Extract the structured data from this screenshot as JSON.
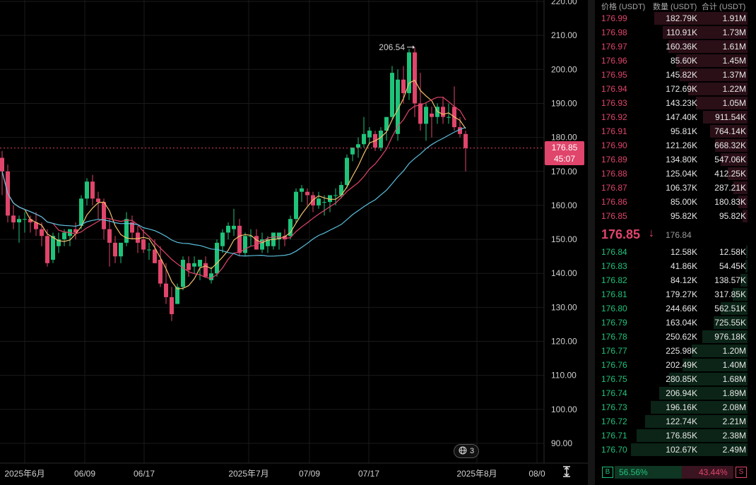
{
  "chart_data": {
    "type": "candlestick",
    "y_axis": {
      "ticks": [
        "220.00",
        "210.00",
        "200.00",
        "190.00",
        "180.00",
        "170.00",
        "160.00",
        "150.00",
        "140.00",
        "130.00",
        "120.00",
        "110.00",
        "100.00",
        "90.00"
      ],
      "range": [
        84,
        222
      ]
    },
    "x_axis": {
      "ticks": [
        "2025年6月",
        "06/09",
        "06/17",
        "2025年7月",
        "07/09",
        "07/17",
        "2025年8月",
        "08/0"
      ]
    },
    "candles": [
      {
        "o": 174,
        "h": 176,
        "l": 163,
        "c": 170
      },
      {
        "o": 170,
        "h": 172,
        "l": 155,
        "c": 157
      },
      {
        "o": 157,
        "h": 160,
        "l": 153,
        "c": 155
      },
      {
        "o": 155,
        "h": 157,
        "l": 149,
        "c": 156
      },
      {
        "o": 156,
        "h": 158,
        "l": 152,
        "c": 156
      },
      {
        "o": 156,
        "h": 157,
        "l": 152,
        "c": 155
      },
      {
        "o": 155,
        "h": 158,
        "l": 151,
        "c": 153
      },
      {
        "o": 153,
        "h": 155,
        "l": 148,
        "c": 151
      },
      {
        "o": 151,
        "h": 153,
        "l": 142,
        "c": 143
      },
      {
        "o": 144,
        "h": 152,
        "l": 143,
        "c": 151
      },
      {
        "o": 148,
        "h": 152,
        "l": 146,
        "c": 150
      },
      {
        "o": 150,
        "h": 153,
        "l": 148,
        "c": 152
      },
      {
        "o": 151,
        "h": 153,
        "l": 148,
        "c": 153
      },
      {
        "o": 153,
        "h": 155,
        "l": 150,
        "c": 152
      },
      {
        "o": 154,
        "h": 163,
        "l": 153,
        "c": 162
      },
      {
        "o": 162,
        "h": 168,
        "l": 160,
        "c": 167
      },
      {
        "o": 167,
        "h": 169,
        "l": 160,
        "c": 162
      },
      {
        "o": 162,
        "h": 164,
        "l": 156,
        "c": 161
      },
      {
        "o": 161,
        "h": 162,
        "l": 150,
        "c": 153
      },
      {
        "o": 153,
        "h": 156,
        "l": 142,
        "c": 149
      },
      {
        "o": 149,
        "h": 151,
        "l": 143,
        "c": 145
      },
      {
        "o": 145,
        "h": 149,
        "l": 143,
        "c": 149
      },
      {
        "o": 149,
        "h": 158,
        "l": 148,
        "c": 156
      },
      {
        "o": 155,
        "h": 157,
        "l": 150,
        "c": 152
      },
      {
        "o": 152,
        "h": 154,
        "l": 146,
        "c": 149
      },
      {
        "o": 150,
        "h": 153,
        "l": 146,
        "c": 147
      },
      {
        "o": 147,
        "h": 149,
        "l": 144,
        "c": 147
      },
      {
        "o": 147,
        "h": 150,
        "l": 143,
        "c": 143
      },
      {
        "o": 144,
        "h": 148,
        "l": 136,
        "c": 137
      },
      {
        "o": 137,
        "h": 143,
        "l": 131,
        "c": 133
      },
      {
        "o": 133,
        "h": 136,
        "l": 126,
        "c": 128
      },
      {
        "o": 131,
        "h": 137,
        "l": 131,
        "c": 136
      },
      {
        "o": 136,
        "h": 145,
        "l": 135,
        "c": 144
      },
      {
        "o": 143,
        "h": 145,
        "l": 139,
        "c": 141
      },
      {
        "o": 142,
        "h": 145,
        "l": 140,
        "c": 143
      },
      {
        "o": 142,
        "h": 144,
        "l": 138,
        "c": 144
      },
      {
        "o": 143,
        "h": 145,
        "l": 139,
        "c": 139
      },
      {
        "o": 138,
        "h": 142,
        "l": 137,
        "c": 140
      },
      {
        "o": 140,
        "h": 150,
        "l": 139,
        "c": 149
      },
      {
        "o": 148,
        "h": 153,
        "l": 146,
        "c": 152
      },
      {
        "o": 152,
        "h": 155,
        "l": 150,
        "c": 154
      },
      {
        "o": 153,
        "h": 159,
        "l": 151,
        "c": 154
      },
      {
        "o": 154,
        "h": 156,
        "l": 145,
        "c": 146
      },
      {
        "o": 146,
        "h": 152,
        "l": 145,
        "c": 151
      },
      {
        "o": 151,
        "h": 153,
        "l": 148,
        "c": 151
      },
      {
        "o": 151,
        "h": 153,
        "l": 147,
        "c": 147
      },
      {
        "o": 147,
        "h": 152,
        "l": 146,
        "c": 150
      },
      {
        "o": 148,
        "h": 151,
        "l": 146,
        "c": 150
      },
      {
        "o": 148,
        "h": 152,
        "l": 147,
        "c": 152
      },
      {
        "o": 150,
        "h": 152,
        "l": 147,
        "c": 152
      },
      {
        "o": 151,
        "h": 153,
        "l": 148,
        "c": 150
      },
      {
        "o": 151,
        "h": 157,
        "l": 150,
        "c": 156
      },
      {
        "o": 156,
        "h": 165,
        "l": 155,
        "c": 164
      },
      {
        "o": 164,
        "h": 166,
        "l": 161,
        "c": 165
      },
      {
        "o": 164,
        "h": 165,
        "l": 160,
        "c": 163
      },
      {
        "o": 163,
        "h": 164,
        "l": 158,
        "c": 160
      },
      {
        "o": 160,
        "h": 164,
        "l": 159,
        "c": 162
      },
      {
        "o": 161,
        "h": 163,
        "l": 157,
        "c": 161
      },
      {
        "o": 161,
        "h": 163,
        "l": 158,
        "c": 163
      },
      {
        "o": 163,
        "h": 165,
        "l": 160,
        "c": 163
      },
      {
        "o": 163,
        "h": 167,
        "l": 162,
        "c": 166
      },
      {
        "o": 166,
        "h": 175,
        "l": 165,
        "c": 174
      },
      {
        "o": 175,
        "h": 177,
        "l": 173,
        "c": 177
      },
      {
        "o": 177,
        "h": 180,
        "l": 174,
        "c": 178
      },
      {
        "o": 178,
        "h": 186,
        "l": 177,
        "c": 181
      },
      {
        "o": 180,
        "h": 183,
        "l": 178,
        "c": 182
      },
      {
        "o": 181,
        "h": 182,
        "l": 176,
        "c": 177
      },
      {
        "o": 177,
        "h": 183,
        "l": 176,
        "c": 182
      },
      {
        "o": 182,
        "h": 186,
        "l": 179,
        "c": 186
      },
      {
        "o": 186,
        "h": 201,
        "l": 185,
        "c": 199
      },
      {
        "o": 181,
        "h": 200,
        "l": 179,
        "c": 197
      },
      {
        "o": 197,
        "h": 201,
        "l": 190,
        "c": 193
      },
      {
        "o": 193,
        "h": 206,
        "l": 191,
        "c": 205
      },
      {
        "o": 205,
        "h": 206.54,
        "l": 186,
        "c": 190
      },
      {
        "o": 190,
        "h": 199,
        "l": 182,
        "c": 184
      },
      {
        "o": 184,
        "h": 190,
        "l": 179,
        "c": 189
      },
      {
        "o": 187,
        "h": 189,
        "l": 180,
        "c": 186
      },
      {
        "o": 186,
        "h": 190,
        "l": 184,
        "c": 189
      },
      {
        "o": 189,
        "h": 192,
        "l": 184,
        "c": 186
      },
      {
        "o": 186,
        "h": 190,
        "l": 184,
        "c": 186
      },
      {
        "o": 189,
        "h": 195,
        "l": 182,
        "c": 183
      },
      {
        "o": 183,
        "h": 186,
        "l": 180,
        "c": 181
      },
      {
        "o": 181,
        "h": 182,
        "l": 170,
        "c": 176.85
      }
    ],
    "high_annotation": "206.54",
    "last_price": "176.85",
    "countdown": "45:07",
    "ma_colors": [
      "#f2c26b",
      "#e0456b",
      "#5bc0de"
    ],
    "up_color": "#1fc37a",
    "down_color": "#e0456b",
    "layers_count": "3"
  },
  "orderbook": {
    "headers": {
      "price": "价格 (USDT)",
      "amount": "数量 (USDT)",
      "total": "合计 (USDT)"
    },
    "asks": [
      {
        "price": "176.99",
        "amount": "182.79K",
        "total": "1.91M",
        "depth": 0.8
      },
      {
        "price": "176.98",
        "amount": "110.91K",
        "total": "1.73M",
        "depth": 0.73
      },
      {
        "price": "176.97",
        "amount": "160.36K",
        "total": "1.61M",
        "depth": 0.68
      },
      {
        "price": "176.96",
        "amount": "85.60K",
        "total": "1.45M",
        "depth": 0.61
      },
      {
        "price": "176.95",
        "amount": "145.82K",
        "total": "1.37M",
        "depth": 0.58
      },
      {
        "price": "176.94",
        "amount": "172.69K",
        "total": "1.22M",
        "depth": 0.51
      },
      {
        "price": "176.93",
        "amount": "143.23K",
        "total": "1.05M",
        "depth": 0.44
      },
      {
        "price": "176.92",
        "amount": "147.40K",
        "total": "911.54K",
        "depth": 0.38
      },
      {
        "price": "176.91",
        "amount": "95.81K",
        "total": "764.14K",
        "depth": 0.32
      },
      {
        "price": "176.90",
        "amount": "121.26K",
        "total": "668.32K",
        "depth": 0.28
      },
      {
        "price": "176.89",
        "amount": "134.80K",
        "total": "547.06K",
        "depth": 0.23
      },
      {
        "price": "176.88",
        "amount": "125.04K",
        "total": "412.25K",
        "depth": 0.17
      },
      {
        "price": "176.87",
        "amount": "106.37K",
        "total": "287.21K",
        "depth": 0.12
      },
      {
        "price": "176.86",
        "amount": "85.00K",
        "total": "180.83K",
        "depth": 0.08
      },
      {
        "price": "176.85",
        "amount": "95.82K",
        "total": "95.82K",
        "depth": 0.04
      }
    ],
    "mid_price": "176.85",
    "mid_arrow": "↓",
    "mark_price": "176.84",
    "bids": [
      {
        "price": "176.84",
        "amount": "12.58K",
        "total": "12.58K",
        "depth": 0.01
      },
      {
        "price": "176.83",
        "amount": "41.86K",
        "total": "54.45K",
        "depth": 0.02
      },
      {
        "price": "176.82",
        "amount": "84.12K",
        "total": "138.57K",
        "depth": 0.06
      },
      {
        "price": "176.81",
        "amount": "179.27K",
        "total": "317.85K",
        "depth": 0.13
      },
      {
        "price": "176.80",
        "amount": "244.66K",
        "total": "562.51K",
        "depth": 0.23
      },
      {
        "price": "176.79",
        "amount": "163.04K",
        "total": "725.55K",
        "depth": 0.29
      },
      {
        "price": "176.78",
        "amount": "250.62K",
        "total": "976.18K",
        "depth": 0.39
      },
      {
        "price": "176.77",
        "amount": "225.98K",
        "total": "1.20M",
        "depth": 0.48
      },
      {
        "price": "176.76",
        "amount": "202.49K",
        "total": "1.40M",
        "depth": 0.56
      },
      {
        "price": "176.75",
        "amount": "280.85K",
        "total": "1.68M",
        "depth": 0.67
      },
      {
        "price": "176.74",
        "amount": "206.94K",
        "total": "1.89M",
        "depth": 0.76
      },
      {
        "price": "176.73",
        "amount": "196.16K",
        "total": "2.08M",
        "depth": 0.83
      },
      {
        "price": "176.72",
        "amount": "122.74K",
        "total": "2.21M",
        "depth": 0.88
      },
      {
        "price": "176.71",
        "amount": "176.85K",
        "total": "2.38M",
        "depth": 0.95
      },
      {
        "price": "176.70",
        "amount": "102.67K",
        "total": "2.49M",
        "depth": 1.0
      }
    ],
    "ratio": {
      "buy_label": "B",
      "buy": "56.56%",
      "sell": "43.44%",
      "sell_label": "S",
      "buy_fraction": 0.5656
    }
  }
}
